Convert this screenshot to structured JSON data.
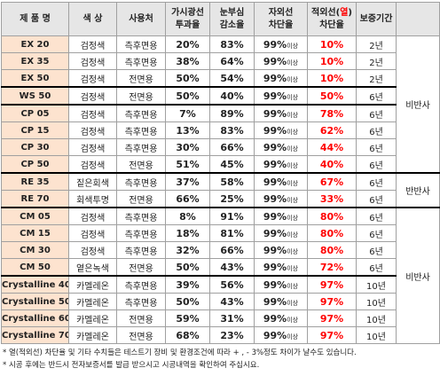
{
  "header": {
    "name": "제 품 명",
    "color": "색 상",
    "use": "사용처",
    "visible": [
      "가시광선",
      "투과율"
    ],
    "glare": [
      "눈부심",
      "감소율"
    ],
    "uv": [
      "자외선",
      "차단율"
    ],
    "ir": [
      [
        "적외선(",
        "열",
        ")"
      ],
      "차단율"
    ],
    "warranty": "보증기간"
  },
  "groups": [
    {
      "label": "비반사",
      "series": [
        [
          {
            "name": "EX 20",
            "color": "검정색",
            "use": "측후면용",
            "visible": "20%",
            "glare": "83%",
            "uv": "99%",
            "uv_note": "이상",
            "ir": "10%",
            "warranty": "2년"
          },
          {
            "name": "EX 35",
            "color": "검정색",
            "use": "측후면용",
            "visible": "38%",
            "glare": "64%",
            "uv": "99%",
            "uv_note": "이상",
            "ir": "10%",
            "warranty": "2년"
          },
          {
            "name": "EX 50",
            "color": "검정색",
            "use": "전면용",
            "visible": "50%",
            "glare": "54%",
            "uv": "99%",
            "uv_note": "이상",
            "ir": "10%",
            "warranty": "2년"
          }
        ],
        [
          {
            "name": "WS 50",
            "color": "검정색",
            "use": "전면용",
            "visible": "50%",
            "glare": "40%",
            "uv": "99%",
            "uv_note": "이상",
            "ir": "50%",
            "warranty": "6년"
          }
        ],
        [
          {
            "name": "CP 05",
            "color": "검정색",
            "use": "측후면용",
            "visible": "7%",
            "glare": "89%",
            "uv": "99%",
            "uv_note": "이상",
            "ir": "78%",
            "warranty": "6년"
          },
          {
            "name": "CP 15",
            "color": "검정색",
            "use": "측후면용",
            "visible": "13%",
            "glare": "83%",
            "uv": "99%",
            "uv_note": "이상",
            "ir": "62%",
            "warranty": "6년"
          },
          {
            "name": "CP 30",
            "color": "검정색",
            "use": "측후면용",
            "visible": "30%",
            "glare": "66%",
            "uv": "99%",
            "uv_note": "이상",
            "ir": "44%",
            "warranty": "6년"
          },
          {
            "name": "CP 50",
            "color": "검정색",
            "use": "전면용",
            "visible": "51%",
            "glare": "45%",
            "uv": "99%",
            "uv_note": "이상",
            "ir": "40%",
            "warranty": "6년"
          }
        ]
      ]
    },
    {
      "label": "반반사",
      "series": [
        [
          {
            "name": "RE 35",
            "color": "짙은회색",
            "use": "측후면용",
            "visible": "37%",
            "glare": "58%",
            "uv": "99%",
            "uv_note": "이상",
            "ir": "67%",
            "warranty": "6년"
          },
          {
            "name": "RE 70",
            "color": "회색투명",
            "use": "전면용",
            "visible": "66%",
            "glare": "25%",
            "uv": "99%",
            "uv_note": "이상",
            "ir": "33%",
            "warranty": "6년"
          }
        ]
      ]
    },
    {
      "label": "비반사",
      "series": [
        [
          {
            "name": "CM 05",
            "color": "검정색",
            "use": "측후면용",
            "visible": "8%",
            "glare": "91%",
            "uv": "99%",
            "uv_note": "이상",
            "ir": "80%",
            "warranty": "6년"
          },
          {
            "name": "CM 15",
            "color": "검정색",
            "use": "측후면용",
            "visible": "18%",
            "glare": "81%",
            "uv": "99%",
            "uv_note": "이상",
            "ir": "80%",
            "warranty": "6년"
          },
          {
            "name": "CM 30",
            "color": "검정색",
            "use": "측후면용",
            "visible": "32%",
            "glare": "66%",
            "uv": "99%",
            "uv_note": "이상",
            "ir": "80%",
            "warranty": "6년"
          },
          {
            "name": "CM 50",
            "color": "옅은녹색",
            "use": "전면용",
            "visible": "50%",
            "glare": "43%",
            "uv": "99%",
            "uv_note": "이상",
            "ir": "72%",
            "warranty": "6년"
          }
        ],
        [
          {
            "name": "Crystalline 40",
            "color": "카멜레온",
            "use": "측후면용",
            "visible": "39%",
            "glare": "56%",
            "uv": "99%",
            "uv_note": "이상",
            "ir": "97%",
            "warranty": "10년"
          },
          {
            "name": "Crystalline 50",
            "color": "카멜레온",
            "use": "측후면용",
            "visible": "50%",
            "glare": "43%",
            "uv": "99%",
            "uv_note": "이상",
            "ir": "97%",
            "warranty": "10년"
          },
          {
            "name": "Crystalline 60",
            "color": "카멜레온",
            "use": "전면용",
            "visible": "59%",
            "glare": "31%",
            "uv": "99%",
            "uv_note": "이상",
            "ir": "97%",
            "warranty": "10년"
          },
          {
            "name": "Crystalline 70",
            "color": "카멜레온",
            "use": "전면용",
            "visible": "68%",
            "glare": "23%",
            "uv": "99%",
            "uv_note": "이상",
            "ir": "97%",
            "warranty": "10년"
          }
        ]
      ]
    }
  ],
  "notes": [
    "* 열(적외선) 차단율 및 기타 수치들은 테스트기 장비 및 환경조건에 따라 + , - 3%정도 차이가 날수도 있습니다.",
    "* 시공 후에는 반드시 전자보증서를 발급 받으시고 시공내역을 확인하여 주십시요."
  ]
}
